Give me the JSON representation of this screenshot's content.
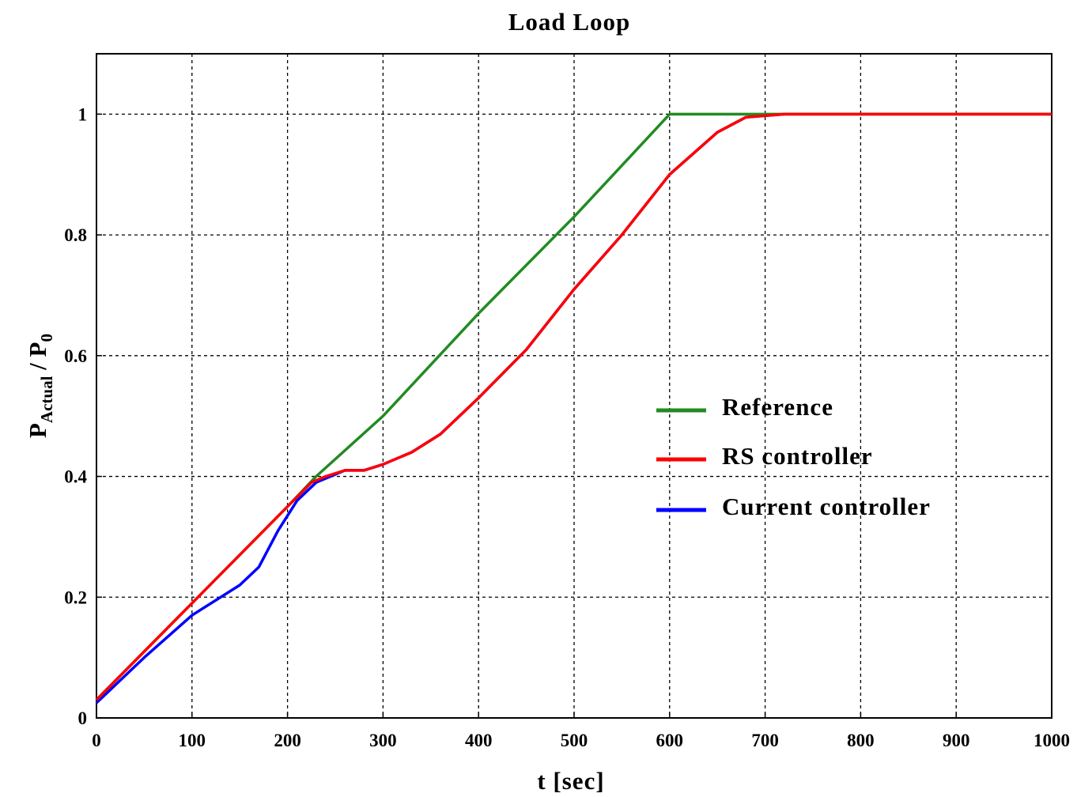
{
  "chart_data": {
    "type": "line",
    "title": "Load Loop",
    "xlabel": "t [sec]",
    "ylabel": {
      "main": "P",
      "sub": "Actual",
      "sep": " / ",
      "main2": "P",
      "sub2": "0"
    },
    "xlim": [
      0,
      1000
    ],
    "ylim": [
      0,
      1.1
    ],
    "x_ticks": [
      0,
      100,
      200,
      300,
      400,
      500,
      600,
      700,
      800,
      900,
      1000
    ],
    "y_ticks": [
      0,
      0.2,
      0.4,
      0.6,
      0.8,
      1
    ],
    "x_tick_labels": [
      "0",
      "100",
      "200",
      "300",
      "400",
      "500",
      "600",
      "700",
      "800",
      "900",
      "1000"
    ],
    "y_tick_labels": [
      "0",
      "0.2",
      "0.4",
      "0.6",
      "0.8",
      "1"
    ],
    "grid": true,
    "legend_position": "right-middle",
    "series": [
      {
        "name": "Reference",
        "color": "#228b22",
        "points": [
          [
            0,
            0.03
          ],
          [
            50,
            0.11
          ],
          [
            100,
            0.19
          ],
          [
            150,
            0.27
          ],
          [
            200,
            0.35
          ],
          [
            230,
            0.4
          ],
          [
            300,
            0.5
          ],
          [
            400,
            0.67
          ],
          [
            500,
            0.83
          ],
          [
            600,
            1.0
          ],
          [
            700,
            1.0
          ],
          [
            800,
            1.0
          ],
          [
            900,
            1.0
          ],
          [
            1000,
            1.0
          ]
        ]
      },
      {
        "name": "RS controller",
        "color": "#ff0000",
        "points": [
          [
            0,
            0.03
          ],
          [
            50,
            0.11
          ],
          [
            100,
            0.19
          ],
          [
            150,
            0.27
          ],
          [
            200,
            0.35
          ],
          [
            225,
            0.39
          ],
          [
            240,
            0.4
          ],
          [
            260,
            0.41
          ],
          [
            280,
            0.41
          ],
          [
            300,
            0.42
          ],
          [
            330,
            0.44
          ],
          [
            360,
            0.47
          ],
          [
            400,
            0.53
          ],
          [
            450,
            0.61
          ],
          [
            500,
            0.71
          ],
          [
            550,
            0.8
          ],
          [
            600,
            0.9
          ],
          [
            650,
            0.97
          ],
          [
            680,
            0.995
          ],
          [
            720,
            1.0
          ],
          [
            800,
            1.0
          ],
          [
            900,
            1.0
          ],
          [
            1000,
            1.0
          ]
        ]
      },
      {
        "name": "Current  controller",
        "color": "#0000ff",
        "points": [
          [
            0,
            0.025
          ],
          [
            50,
            0.1
          ],
          [
            100,
            0.17
          ],
          [
            130,
            0.2
          ],
          [
            150,
            0.22
          ],
          [
            170,
            0.25
          ],
          [
            190,
            0.31
          ],
          [
            210,
            0.36
          ],
          [
            230,
            0.39
          ],
          [
            245,
            0.4
          ],
          [
            260,
            0.41
          ],
          [
            280,
            0.41
          ],
          [
            300,
            0.42
          ],
          [
            330,
            0.44
          ],
          [
            360,
            0.47
          ],
          [
            400,
            0.53
          ],
          [
            450,
            0.61
          ],
          [
            500,
            0.71
          ],
          [
            550,
            0.8
          ],
          [
            600,
            0.9
          ],
          [
            650,
            0.97
          ],
          [
            680,
            0.995
          ],
          [
            720,
            1.0
          ],
          [
            800,
            1.0
          ],
          [
            900,
            1.0
          ],
          [
            1000,
            1.0
          ]
        ]
      }
    ]
  }
}
